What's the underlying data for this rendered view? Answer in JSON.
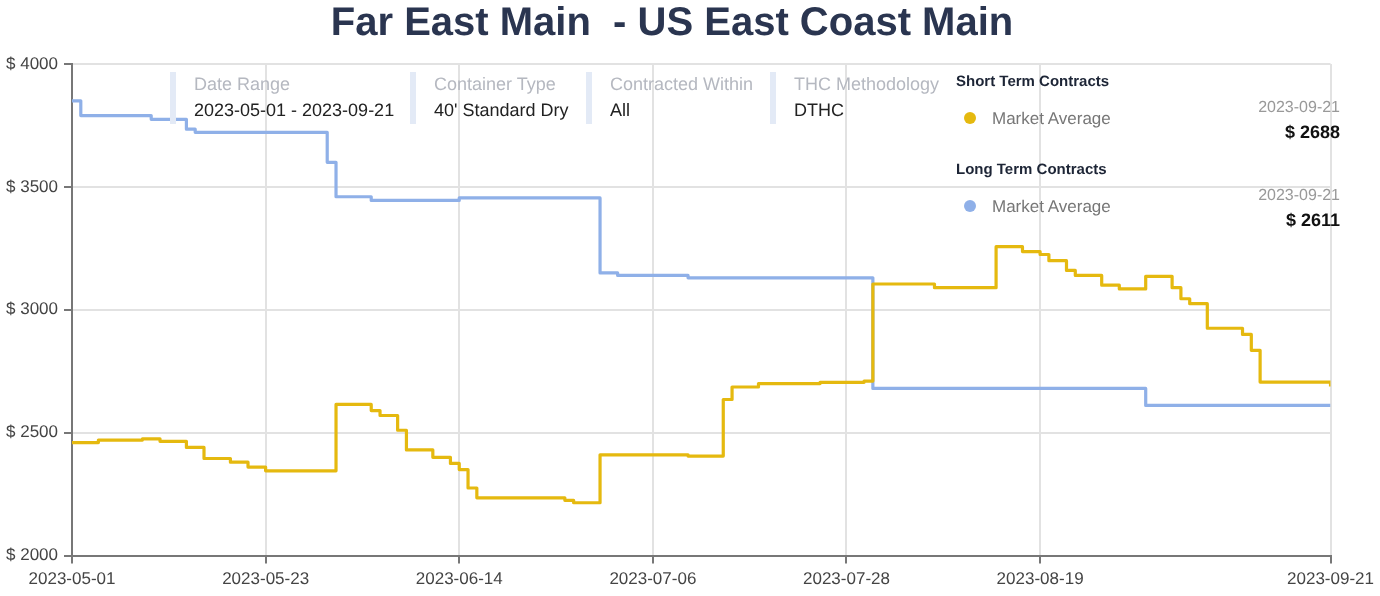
{
  "chart_data": {
    "type": "step",
    "title": "Far East Main  - US East Coast Main",
    "annotations": [
      "Short Term Contracts",
      "2023-09-21",
      "$ 2688",
      "Long Term Contracts",
      "2023-09-21",
      "$ 2611",
      "Date Range",
      "2023-05-01 - 2023-09-21",
      "Container Type",
      "40' Standard Dry",
      "Contracted Within",
      "All",
      "THC Methodology",
      "DTHC"
    ],
    "series": [
      {
        "name": "Market Average",
        "color": "#e5b90f",
        "x": [
          "2023-05-01",
          "2023-05-04",
          "2023-05-09",
          "2023-05-11",
          "2023-05-14",
          "2023-05-16",
          "2023-05-19",
          "2023-05-21",
          "2023-05-23",
          "2023-05-31",
          "2023-06-04",
          "2023-06-05",
          "2023-06-07",
          "2023-06-08",
          "2023-06-11",
          "2023-06-13",
          "2023-06-14",
          "2023-06-15",
          "2023-06-16",
          "2023-06-26",
          "2023-06-27",
          "2023-06-30",
          "2023-07-10",
          "2023-07-14",
          "2023-07-15",
          "2023-07-18",
          "2023-07-25",
          "2023-07-30",
          "2023-07-31",
          "2023-08-07",
          "2023-08-14",
          "2023-08-17",
          "2023-08-19",
          "2023-08-20",
          "2023-08-22",
          "2023-08-23",
          "2023-08-26",
          "2023-08-28",
          "2023-08-31",
          "2023-09-03",
          "2023-09-04",
          "2023-09-05",
          "2023-09-07",
          "2023-09-11",
          "2023-09-12",
          "2023-09-13",
          "2023-09-21"
        ],
        "values": [
          2460,
          2470,
          2475,
          2465,
          2440,
          2395,
          2380,
          2360,
          2345,
          2615,
          2590,
          2570,
          2510,
          2430,
          2400,
          2375,
          2350,
          2275,
          2235,
          2225,
          2215,
          2410,
          2405,
          2635,
          2686,
          2700,
          2705,
          2710,
          3105,
          3090,
          3257,
          3237,
          3225,
          3200,
          3160,
          3140,
          3100,
          3085,
          3136,
          3090,
          3045,
          3025,
          2925,
          2900,
          2835,
          2706,
          2688
        ]
      },
      {
        "name": "Market Average",
        "color": "#8fb0e8",
        "x": [
          "2023-05-01",
          "2023-05-02",
          "2023-05-10",
          "2023-05-14",
          "2023-05-15",
          "2023-05-30",
          "2023-05-31",
          "2023-06-04",
          "2023-06-14",
          "2023-06-30",
          "2023-07-02",
          "2023-07-10",
          "2023-07-31",
          "2023-08-31",
          "2023-09-21"
        ],
        "values": [
          3850,
          3790,
          3775,
          3735,
          3722,
          3600,
          3460,
          3445,
          3455,
          3150,
          3140,
          3130,
          2680,
          2611,
          2611
        ]
      }
    ],
    "xlim": [
      "2023-05-01",
      "2023-09-21"
    ],
    "xticks": [
      "2023-05-01",
      "2023-05-23",
      "2023-06-14",
      "2023-07-06",
      "2023-07-28",
      "2023-08-19",
      "2023-09-21"
    ],
    "ylim": [
      2000,
      4000
    ],
    "yticks": [
      {
        "value": 2000,
        "label": "$ 2000"
      },
      {
        "value": 2500,
        "label": "$ 2500"
      },
      {
        "value": 3000,
        "label": "$ 3000"
      },
      {
        "value": 3500,
        "label": "$ 3500"
      },
      {
        "value": 4000,
        "label": "$ 4000"
      }
    ],
    "grid": true,
    "legend": "top right"
  }
}
